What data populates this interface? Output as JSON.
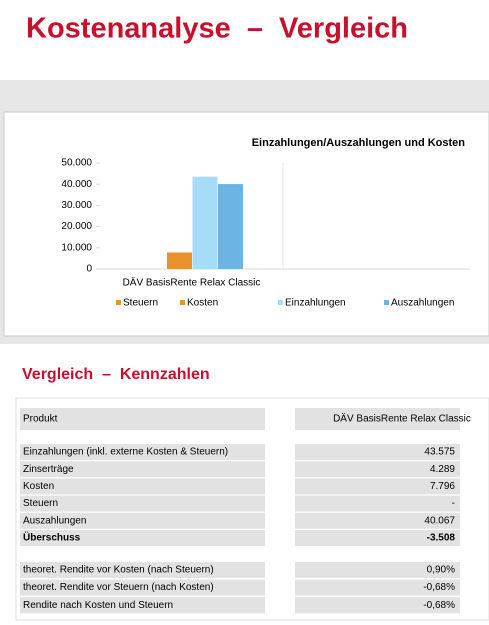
{
  "header": {
    "title": "Kostenanalyse  –  Vergleich"
  },
  "chart_data": {
    "type": "bar",
    "title": "Einzahlungen/Auszahlungen und Kosten",
    "categories": [
      "DÄV BasisRente Relax Classic"
    ],
    "series": [
      {
        "name": "Steuern",
        "color": "#e8922e",
        "values": [
          null
        ]
      },
      {
        "name": "Kosten",
        "color": "#e8922e",
        "values": [
          7796
        ]
      },
      {
        "name": "Einzahlungen",
        "color": "#a6dcf8",
        "values": [
          43575
        ]
      },
      {
        "name": "Auszahlungen",
        "color": "#6cb4e4",
        "values": [
          40067
        ]
      }
    ],
    "ylim": [
      0,
      50000
    ],
    "yticks": [
      0,
      {
        "value": 10000,
        "label": "10.000"
      },
      {
        "value": 20000,
        "label": "20.000"
      },
      {
        "value": 30000,
        "label": "30.000"
      },
      {
        "value": 40000,
        "label": "40.000"
      },
      {
        "value": 50000,
        "label": "50.000"
      }
    ],
    "legend": "bottom"
  },
  "section": {
    "title": "Vergleich  –  Kennzahlen"
  },
  "table": {
    "header": [
      "Produkt",
      "DÄV BasisRente Relax Classic"
    ],
    "rows": [
      [
        "Einzahlungen (inkl. externe Kosten & Steuern)",
        "43.575"
      ],
      [
        "Zinserträge",
        "4.289"
      ],
      [
        "Kosten",
        "7.796"
      ],
      [
        "Steuern",
        "-"
      ],
      [
        "Auszahlungen",
        "40.067"
      ],
      [
        "Überschuss",
        "-3.508"
      ]
    ],
    "ratios": [
      [
        "theoret. Rendite vor Kosten (nach Steuern)",
        "0,90%"
      ],
      [
        "theoret. Rendite vor Steuern (nach Kosten)",
        "-0,68%"
      ],
      [
        "Rendite nach Kosten und Steuern",
        "-0,68%"
      ]
    ]
  }
}
